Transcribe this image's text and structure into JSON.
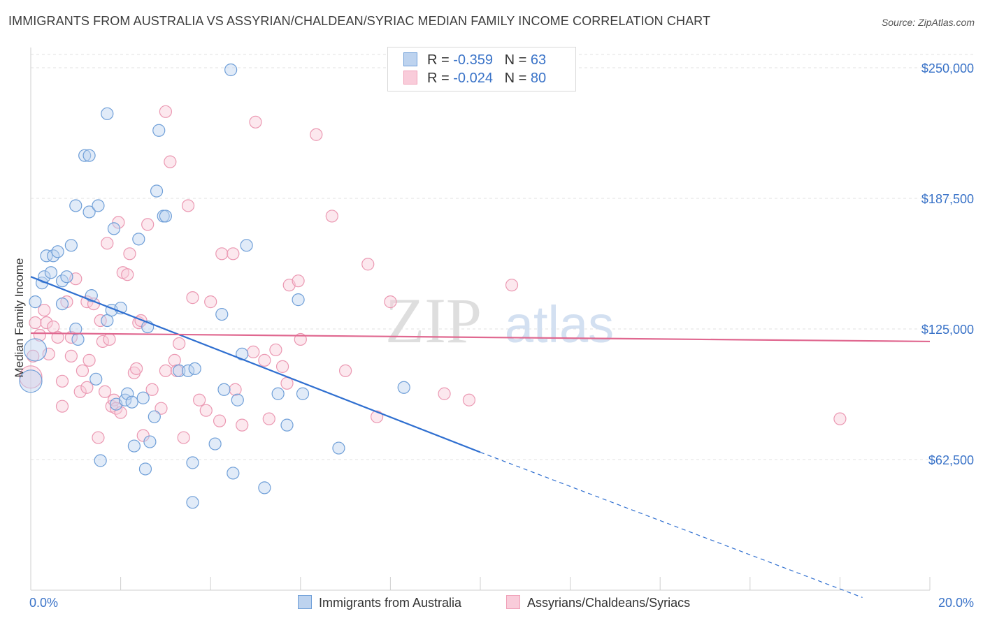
{
  "title": "IMMIGRANTS FROM AUSTRALIA VS ASSYRIAN/CHALDEAN/SYRIAC MEDIAN FAMILY INCOME CORRELATION CHART",
  "source": "Source: ZipAtlas.com",
  "colors": {
    "blue": "#6f9fd8",
    "blue_line": "#2f6fd0",
    "pink": "#f0a0b8",
    "pink_line": "#e06890",
    "axis_text": "#3a73c8"
  },
  "legend": {
    "r_label": "R =",
    "n_label": "N =",
    "series": [
      {
        "r": "-0.359",
        "n": "63"
      },
      {
        "r": "-0.024",
        "n": "80"
      }
    ]
  },
  "bottom_legend": {
    "a": "Immigrants from Australia",
    "b": "Assyrians/Chaldeans/Syriacs"
  },
  "watermark": {
    "zip": "ZIP",
    "atlas": "atlas"
  },
  "chart_data": {
    "type": "scatter",
    "xlabel": "",
    "ylabel": "Median Family Income",
    "xlim": [
      0,
      20
    ],
    "ylim": [
      0,
      250000
    ],
    "x_tick_labels": [
      "0.0%",
      "20.0%"
    ],
    "y_ticks": [
      62500,
      125000,
      187500,
      250000
    ],
    "y_tick_labels": [
      "$62,500",
      "$125,000",
      "$187,500",
      "$250,000"
    ],
    "series": [
      {
        "name": "Immigrants from Australia",
        "r": -0.359,
        "n": 63,
        "trend": {
          "x0": 0,
          "y0": 150000,
          "x1": 10,
          "y1": 66000,
          "dash_to_x": 18.5,
          "dash_to_y": -3500
        },
        "points": [
          [
            0.0,
            100000,
            1
          ],
          [
            0.1,
            115000,
            1
          ],
          [
            0.1,
            138000,
            0
          ],
          [
            0.25,
            147000,
            0
          ],
          [
            0.3,
            150000,
            0
          ],
          [
            0.35,
            160000,
            0
          ],
          [
            0.45,
            152000,
            0
          ],
          [
            0.5,
            160000,
            0
          ],
          [
            0.6,
            162000,
            0
          ],
          [
            0.7,
            148000,
            0
          ],
          [
            0.7,
            137000,
            0
          ],
          [
            0.8,
            150000,
            0
          ],
          [
            0.9,
            165000,
            0
          ],
          [
            1.0,
            184000,
            0
          ],
          [
            1.0,
            125000,
            0
          ],
          [
            1.05,
            120000,
            0
          ],
          [
            1.2,
            208000,
            0
          ],
          [
            1.3,
            208000,
            0
          ],
          [
            1.3,
            181000,
            0
          ],
          [
            1.35,
            141000,
            0
          ],
          [
            1.45,
            101000,
            0
          ],
          [
            1.5,
            184000,
            0
          ],
          [
            1.55,
            62000,
            0
          ],
          [
            1.7,
            228000,
            0
          ],
          [
            1.7,
            129000,
            0
          ],
          [
            1.8,
            134000,
            0
          ],
          [
            1.85,
            173000,
            0
          ],
          [
            1.9,
            89000,
            0
          ],
          [
            2.0,
            135000,
            0
          ],
          [
            2.1,
            91000,
            0
          ],
          [
            2.15,
            94000,
            0
          ],
          [
            2.25,
            90000,
            0
          ],
          [
            2.3,
            69000,
            0
          ],
          [
            2.4,
            168000,
            0
          ],
          [
            2.5,
            92000,
            0
          ],
          [
            2.55,
            58000,
            0
          ],
          [
            2.6,
            126000,
            0
          ],
          [
            2.65,
            71000,
            0
          ],
          [
            2.75,
            83000,
            0
          ],
          [
            2.8,
            191000,
            0
          ],
          [
            2.85,
            220000,
            0
          ],
          [
            2.95,
            179000,
            0
          ],
          [
            3.0,
            179000,
            0
          ],
          [
            3.3,
            105000,
            0
          ],
          [
            3.5,
            105000,
            0
          ],
          [
            3.6,
            61000,
            0
          ],
          [
            3.65,
            106000,
            0
          ],
          [
            3.6,
            42000,
            0
          ],
          [
            4.1,
            70000,
            0
          ],
          [
            4.25,
            132000,
            0
          ],
          [
            4.3,
            96000,
            0
          ],
          [
            4.5,
            56000,
            0
          ],
          [
            4.6,
            91000,
            0
          ],
          [
            4.7,
            113000,
            0
          ],
          [
            4.8,
            165000,
            0
          ],
          [
            5.2,
            49000,
            0
          ],
          [
            5.5,
            94000,
            0
          ],
          [
            5.7,
            79000,
            0
          ],
          [
            5.95,
            139000,
            0
          ],
          [
            6.05,
            94000,
            0
          ],
          [
            6.85,
            68000,
            0
          ],
          [
            8.3,
            97000,
            0
          ],
          [
            4.45,
            249000,
            0
          ]
        ]
      },
      {
        "name": "Assyrians/Chaldeans/Syriacs",
        "r": -0.024,
        "n": 80,
        "trend": {
          "x0": 0,
          "y0": 123000,
          "x1": 20,
          "y1": 119000
        },
        "points": [
          [
            0.0,
            102000,
            1
          ],
          [
            0.05,
            112000,
            0
          ],
          [
            0.1,
            128000,
            0
          ],
          [
            0.2,
            122000,
            0
          ],
          [
            0.3,
            134000,
            0
          ],
          [
            0.35,
            128000,
            0
          ],
          [
            0.4,
            113000,
            0
          ],
          [
            0.5,
            126000,
            0
          ],
          [
            0.6,
            121000,
            0
          ],
          [
            0.7,
            100000,
            0
          ],
          [
            0.7,
            88000,
            0
          ],
          [
            0.8,
            138000,
            0
          ],
          [
            0.9,
            121000,
            0
          ],
          [
            0.9,
            112000,
            0
          ],
          [
            1.0,
            149000,
            0
          ],
          [
            1.1,
            95000,
            0
          ],
          [
            1.15,
            105000,
            0
          ],
          [
            1.25,
            138000,
            0
          ],
          [
            1.25,
            97000,
            0
          ],
          [
            1.3,
            110000,
            0
          ],
          [
            1.4,
            137000,
            0
          ],
          [
            1.5,
            73000,
            0
          ],
          [
            1.55,
            129000,
            0
          ],
          [
            1.6,
            119000,
            0
          ],
          [
            1.65,
            95000,
            0
          ],
          [
            1.7,
            166000,
            0
          ],
          [
            1.75,
            120000,
            0
          ],
          [
            1.8,
            88000,
            0
          ],
          [
            1.85,
            91000,
            0
          ],
          [
            1.9,
            87000,
            0
          ],
          [
            1.95,
            176000,
            0
          ],
          [
            2.0,
            85000,
            0
          ],
          [
            2.05,
            152000,
            0
          ],
          [
            2.15,
            151000,
            0
          ],
          [
            2.2,
            161000,
            0
          ],
          [
            2.3,
            104000,
            0
          ],
          [
            2.35,
            106000,
            0
          ],
          [
            2.4,
            128000,
            0
          ],
          [
            2.45,
            129000,
            0
          ],
          [
            2.5,
            74000,
            0
          ],
          [
            2.6,
            175000,
            0
          ],
          [
            2.7,
            96000,
            0
          ],
          [
            2.9,
            87000,
            0
          ],
          [
            3.0,
            105000,
            0
          ],
          [
            3.0,
            229000,
            0
          ],
          [
            3.1,
            205000,
            0
          ],
          [
            3.2,
            110000,
            0
          ],
          [
            3.25,
            105000,
            0
          ],
          [
            3.3,
            118000,
            0
          ],
          [
            3.4,
            73000,
            0
          ],
          [
            3.5,
            184000,
            0
          ],
          [
            3.6,
            140000,
            0
          ],
          [
            3.75,
            91000,
            0
          ],
          [
            3.9,
            86000,
            0
          ],
          [
            4.0,
            138000,
            0
          ],
          [
            4.2,
            81000,
            0
          ],
          [
            4.25,
            161000,
            0
          ],
          [
            4.5,
            161000,
            0
          ],
          [
            4.55,
            96000,
            0
          ],
          [
            4.7,
            79000,
            0
          ],
          [
            4.95,
            114000,
            0
          ],
          [
            5.0,
            224000,
            0
          ],
          [
            5.2,
            110000,
            0
          ],
          [
            5.3,
            82000,
            0
          ],
          [
            5.45,
            115000,
            0
          ],
          [
            5.6,
            107000,
            0
          ],
          [
            5.7,
            99000,
            0
          ],
          [
            5.75,
            146000,
            0
          ],
          [
            5.95,
            148000,
            0
          ],
          [
            6.0,
            120000,
            0
          ],
          [
            6.35,
            218000,
            0
          ],
          [
            6.7,
            179000,
            0
          ],
          [
            7.0,
            105000,
            0
          ],
          [
            7.5,
            156000,
            0
          ],
          [
            7.7,
            83000,
            0
          ],
          [
            8.0,
            138000,
            0
          ],
          [
            9.2,
            94000,
            0
          ],
          [
            9.75,
            91000,
            0
          ],
          [
            10.7,
            146000,
            0
          ],
          [
            18.0,
            82000,
            0
          ]
        ]
      }
    ]
  }
}
